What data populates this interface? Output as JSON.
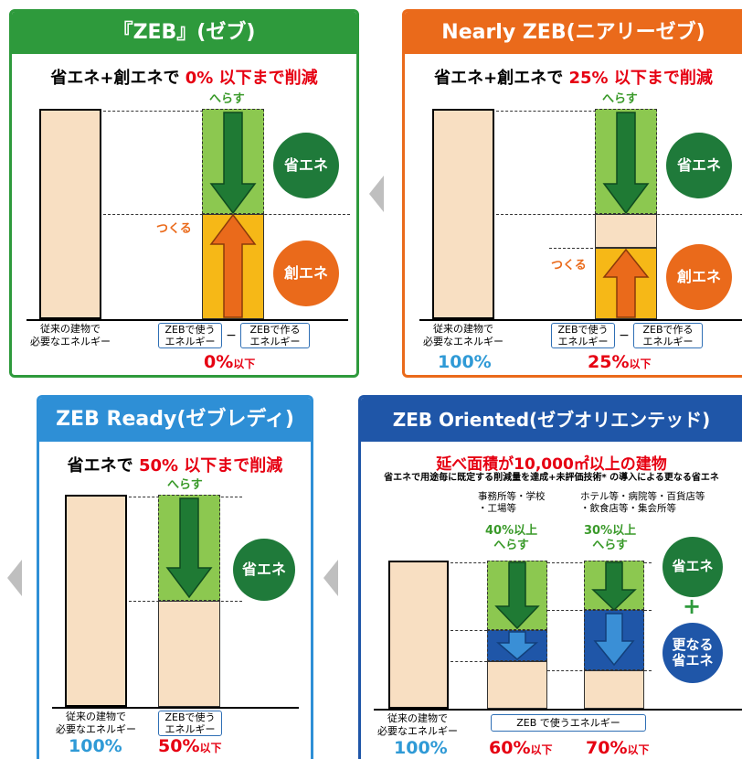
{
  "p1": {
    "title": "『ZEB』(ゼブ)",
    "subtitle_pre": "省エネ+創エネで ",
    "subtitle_red": "0% 以下まで削減",
    "reduce": "へらす",
    "create": "つくる",
    "save_circle": "省エネ",
    "create_circle": "創エネ",
    "base_label": "従来の建物で\n必要なエネルギー",
    "use_label": "ZEBで使う\nエネルギー",
    "minus": "−",
    "make_label": "ZEBで作る\nエネルギー",
    "pct": "0%",
    "pct_suffix": "以下"
  },
  "p2": {
    "title": "Nearly ZEB(ニアリーゼブ)",
    "subtitle_pre": "省エネ+創エネで ",
    "subtitle_red": "25% 以下まで削減",
    "reduce": "へらす",
    "create": "つくる",
    "save_circle": "省エネ",
    "create_circle": "創エネ",
    "base_label": "従来の建物で\n必要なエネルギー",
    "use_label": "ZEBで使う\nエネルギー",
    "minus": "−",
    "make_label": "ZEBで作る\nエネルギー",
    "base_pct": "100%",
    "pct": "25%",
    "pct_suffix": "以下"
  },
  "p3": {
    "title": "ZEB Ready(ゼブレディ)",
    "subtitle_pre": "省エネで ",
    "subtitle_red": "50% 以下まで削減",
    "reduce": "へらす",
    "save_circle": "省エネ",
    "base_label": "従来の建物で\n必要なエネルギー",
    "use_label": "ZEBで使う\nエネルギー",
    "base_pct": "100%",
    "pct": "50%",
    "pct_suffix": "以下"
  },
  "p4": {
    "title": "ZEB Oriented(ゼブオリエンテッド)",
    "subtitle": "延べ面積が10,000㎡以上の建物",
    "note": "省エネで用途毎に既定する削減量を達成+未評価技術* の導入による更なる省エネ",
    "cat1": "事務所等・学校\n・工場等",
    "cat2": "ホテル等・病院等・百貨店等\n・飲食店等・集会所等",
    "reduce1": "40%以上\nへらす",
    "reduce2": "30%以上\nへらす",
    "save_circle": "省エネ",
    "plus": "+",
    "further_circle": "更なる\n省エネ",
    "base_label": "従来の建物で\n必要なエネルギー",
    "use_label": "ZEB で使うエネルギー",
    "base_pct": "100%",
    "pct1": "60%",
    "pct2": "70%",
    "pct_suffix": "以下"
  }
}
